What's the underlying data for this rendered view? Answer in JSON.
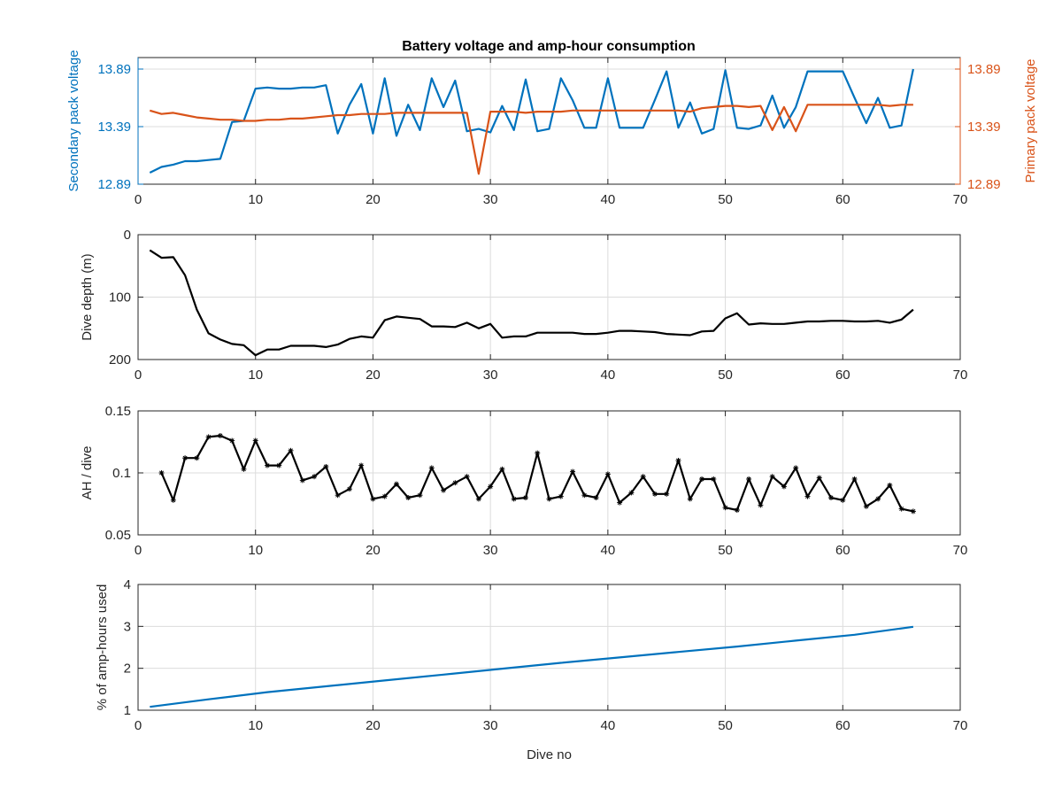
{
  "colors": {
    "secondary": "#0072bd",
    "primary": "#d95319",
    "black": "#000000",
    "grid": "#dcdcdc",
    "axis": "#262626"
  },
  "chart_data": [
    {
      "type": "line",
      "title": "Battery voltage and amp-hour consumption",
      "xlabel": "",
      "xlim": [
        0,
        70
      ],
      "xticks": [
        0,
        10,
        20,
        30,
        40,
        50,
        60,
        70
      ],
      "ylabel": "Secondary pack voltage",
      "ylim": [
        12.89,
        13.99
      ],
      "yticks": [
        "12.89",
        "13.39",
        "13.89"
      ],
      "y2label": "Primary pack voltage",
      "y2lim": [
        12.89,
        13.99
      ],
      "y2ticks": [
        "12.89",
        "13.39",
        "13.89"
      ],
      "grid": true,
      "series": [
        {
          "name": "",
          "axis": "left",
          "color": "#0072bd",
          "x": [
            1,
            2,
            3,
            4,
            5,
            6,
            7,
            8,
            9,
            10,
            11,
            12,
            13,
            14,
            15,
            16,
            17,
            18,
            19,
            20,
            21,
            22,
            23,
            24,
            25,
            26,
            27,
            28,
            29,
            30,
            31,
            32,
            33,
            34,
            35,
            36,
            37,
            38,
            39,
            40,
            41,
            42,
            43,
            44,
            45,
            46,
            47,
            48,
            49,
            50,
            51,
            52,
            53,
            54,
            55,
            56,
            57,
            58,
            59,
            60,
            61,
            62,
            63,
            64,
            65,
            66
          ],
          "y": [
            12.99,
            13.04,
            13.06,
            13.09,
            13.09,
            13.1,
            13.11,
            13.43,
            13.44,
            13.72,
            13.73,
            13.72,
            13.72,
            13.73,
            13.73,
            13.75,
            13.33,
            13.58,
            13.76,
            13.33,
            13.81,
            13.31,
            13.58,
            13.36,
            13.81,
            13.56,
            13.79,
            13.35,
            13.37,
            13.34,
            13.57,
            13.36,
            13.8,
            13.35,
            13.37,
            13.81,
            13.62,
            13.38,
            13.38,
            13.81,
            13.38,
            13.38,
            13.38,
            13.62,
            13.87,
            13.38,
            13.6,
            13.33,
            13.37,
            13.88,
            13.38,
            13.37,
            13.4,
            13.66,
            13.38,
            13.56,
            13.87,
            13.87,
            13.87,
            13.87,
            13.64,
            13.42,
            13.64,
            13.38,
            13.4,
            13.89
          ]
        },
        {
          "name": "",
          "axis": "right",
          "color": "#d95319",
          "x": [
            1,
            2,
            3,
            4,
            5,
            6,
            7,
            8,
            9,
            10,
            11,
            12,
            13,
            14,
            15,
            16,
            17,
            18,
            19,
            20,
            21,
            22,
            23,
            24,
            25,
            26,
            27,
            28,
            29,
            30,
            31,
            32,
            33,
            34,
            35,
            36,
            37,
            38,
            39,
            40,
            41,
            42,
            43,
            44,
            45,
            46,
            47,
            48,
            49,
            50,
            51,
            52,
            53,
            54,
            55,
            56,
            57,
            58,
            59,
            60,
            61,
            62,
            63,
            64,
            65,
            66
          ],
          "y": [
            13.53,
            13.5,
            13.51,
            13.49,
            13.47,
            13.46,
            13.45,
            13.45,
            13.44,
            13.44,
            13.45,
            13.45,
            13.46,
            13.46,
            13.47,
            13.48,
            13.49,
            13.49,
            13.5,
            13.5,
            13.5,
            13.51,
            13.51,
            13.51,
            13.51,
            13.51,
            13.51,
            13.51,
            12.98,
            13.52,
            13.52,
            13.52,
            13.51,
            13.52,
            13.52,
            13.52,
            13.53,
            13.53,
            13.53,
            13.53,
            13.53,
            13.53,
            13.53,
            13.53,
            13.53,
            13.53,
            13.52,
            13.55,
            13.56,
            13.57,
            13.57,
            13.56,
            13.57,
            13.36,
            13.56,
            13.35,
            13.58,
            13.58,
            13.58,
            13.58,
            13.58,
            13.58,
            13.58,
            13.57,
            13.58,
            13.58
          ]
        }
      ]
    },
    {
      "type": "line",
      "title": "",
      "xlabel": "",
      "xlim": [
        0,
        70
      ],
      "xticks": [
        0,
        10,
        20,
        30,
        40,
        50,
        60,
        70
      ],
      "ylabel": "Dive depth (m)",
      "ylim": [
        0,
        200
      ],
      "yticks": [
        0,
        100,
        200
      ],
      "yreverse": true,
      "grid": true,
      "series": [
        {
          "name": "",
          "color": "#000000",
          "x": [
            1,
            2,
            3,
            4,
            5,
            6,
            7,
            8,
            9,
            10,
            11,
            12,
            13,
            14,
            15,
            16,
            17,
            18,
            19,
            20,
            21,
            22,
            23,
            24,
            25,
            26,
            27,
            28,
            29,
            30,
            31,
            32,
            33,
            34,
            35,
            36,
            37,
            38,
            39,
            40,
            41,
            42,
            43,
            44,
            45,
            46,
            47,
            48,
            49,
            50,
            51,
            52,
            53,
            54,
            55,
            56,
            57,
            58,
            59,
            60,
            61,
            62,
            63,
            64,
            65,
            66
          ],
          "y": [
            25,
            37,
            36,
            65,
            120,
            158,
            168,
            175,
            177,
            193,
            184,
            184,
            178,
            178,
            178,
            180,
            176,
            167,
            163,
            165,
            137,
            131,
            133,
            135,
            147,
            147,
            148,
            141,
            150,
            143,
            165,
            163,
            163,
            157,
            157,
            157,
            157,
            159,
            159,
            157,
            154,
            154,
            155,
            156,
            159,
            160,
            161,
            155,
            154,
            134,
            126,
            144,
            142,
            143,
            143,
            141,
            139,
            139,
            138,
            138,
            139,
            139,
            138,
            141,
            136,
            120
          ]
        }
      ]
    },
    {
      "type": "line",
      "title": "",
      "xlabel": "",
      "xlim": [
        0,
        70
      ],
      "xticks": [
        0,
        10,
        20,
        30,
        40,
        50,
        60,
        70
      ],
      "ylabel": "AH / dive",
      "ylim": [
        0.05,
        0.15
      ],
      "yticks": [
        "0.05",
        "0.1",
        "0.15"
      ],
      "grid": true,
      "marker": "asterisk",
      "series": [
        {
          "name": "",
          "color": "#000000",
          "x": [
            2,
            3,
            4,
            5,
            6,
            7,
            8,
            9,
            10,
            11,
            12,
            13,
            14,
            15,
            16,
            17,
            18,
            19,
            20,
            21,
            22,
            23,
            24,
            25,
            26,
            27,
            28,
            29,
            30,
            31,
            32,
            33,
            34,
            35,
            36,
            37,
            38,
            39,
            40,
            41,
            42,
            43,
            44,
            45,
            46,
            47,
            48,
            49,
            50,
            51,
            52,
            53,
            54,
            55,
            56,
            57,
            58,
            59,
            60,
            61,
            62,
            63,
            64,
            65,
            66
          ],
          "y": [
            0.1,
            0.078,
            0.112,
            0.112,
            0.129,
            0.13,
            0.126,
            0.103,
            0.126,
            0.106,
            0.106,
            0.118,
            0.094,
            0.097,
            0.105,
            0.082,
            0.087,
            0.106,
            0.079,
            0.081,
            0.091,
            0.08,
            0.082,
            0.104,
            0.086,
            0.092,
            0.097,
            0.079,
            0.089,
            0.103,
            0.079,
            0.08,
            0.116,
            0.079,
            0.081,
            0.101,
            0.082,
            0.08,
            0.099,
            0.076,
            0.084,
            0.097,
            0.083,
            0.083,
            0.11,
            0.079,
            0.095,
            0.095,
            0.072,
            0.07,
            0.095,
            0.074,
            0.097,
            0.089,
            0.104,
            0.081,
            0.096,
            0.08,
            0.078,
            0.095,
            0.073,
            0.079,
            0.09,
            0.071,
            0.069
          ]
        }
      ]
    },
    {
      "type": "line",
      "title": "",
      "xlabel": "Dive no",
      "xlim": [
        0,
        70
      ],
      "xticks": [
        0,
        10,
        20,
        30,
        40,
        50,
        60,
        70
      ],
      "ylabel": "% of amp-hours used",
      "ylim": [
        1,
        4
      ],
      "yticks": [
        1,
        2,
        3,
        4
      ],
      "grid": true,
      "series": [
        {
          "name": "",
          "color": "#0072bd",
          "x": [
            1,
            6,
            11,
            16,
            21,
            26,
            31,
            36,
            41,
            46,
            51,
            56,
            61,
            66
          ],
          "y": [
            1.08,
            1.26,
            1.43,
            1.57,
            1.71,
            1.85,
            1.99,
            2.13,
            2.26,
            2.39,
            2.52,
            2.66,
            2.8,
            2.99
          ]
        }
      ]
    }
  ]
}
